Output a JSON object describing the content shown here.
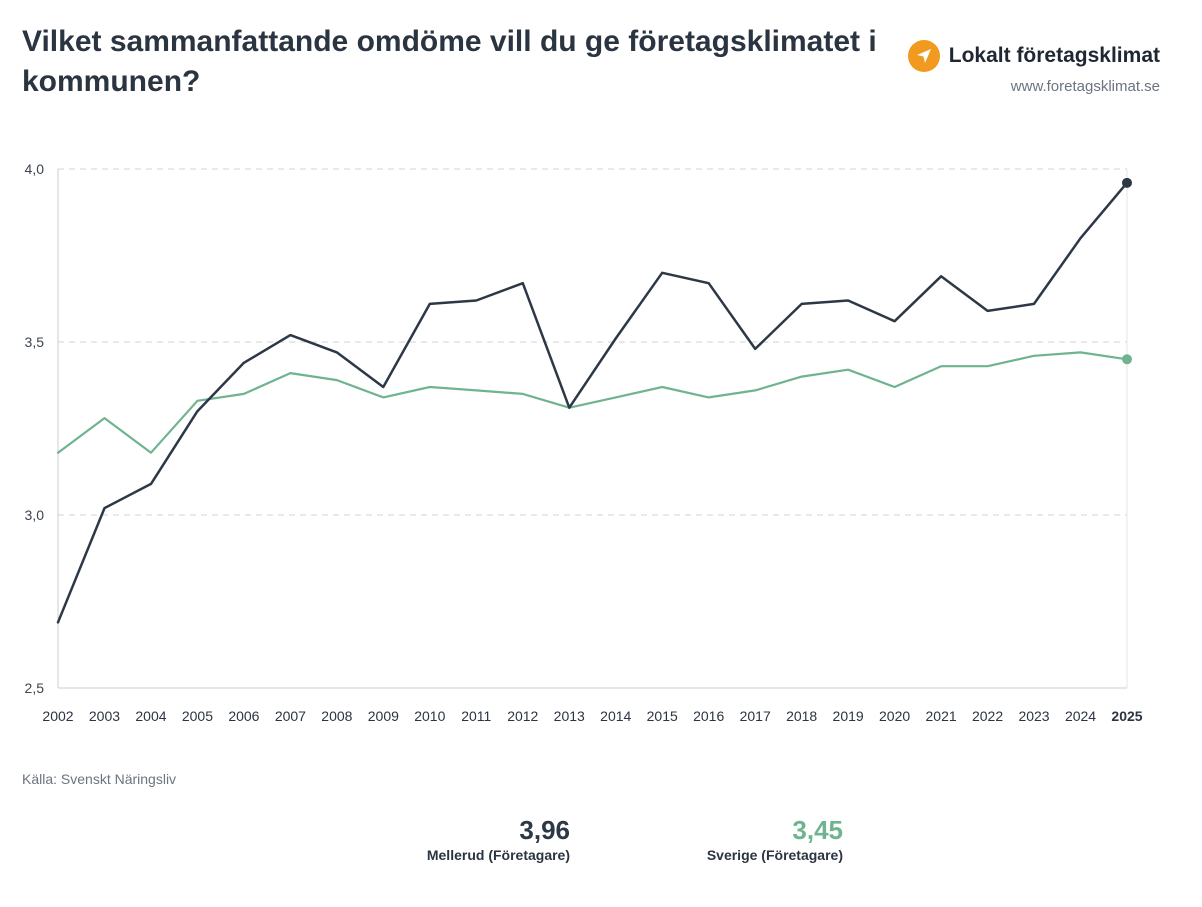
{
  "header": {
    "title": "Vilket sammanfattande omdöme vill du ge företagsklimatet i kommunen?",
    "brand_name": "Lokalt företagsklimat",
    "brand_url": "www.foretagsklimat.se"
  },
  "footer": {
    "source": "Källa: Svenskt Näringsliv"
  },
  "summary": [
    {
      "value": "3,96",
      "label": "Mellerud (Företagare)",
      "color": "#2d3846"
    },
    {
      "value": "3,45",
      "label": "Sverige (Företagare)",
      "color": "#6fb38f"
    }
  ],
  "chart_data": {
    "type": "line",
    "title": "Vilket sammanfattande omdöme vill du ge företagsklimatet i kommunen?",
    "x": [
      "2002",
      "2003",
      "2004",
      "2005",
      "2006",
      "2007",
      "2008",
      "2009",
      "2010",
      "2011",
      "2012",
      "2013",
      "2014",
      "2015",
      "2016",
      "2017",
      "2018",
      "2019",
      "2020",
      "2021",
      "2022",
      "2023",
      "2024",
      "2025"
    ],
    "highlight_x": "2025",
    "ylim": [
      2.5,
      4.0
    ],
    "yticks": [
      2.5,
      3.0,
      3.5,
      4.0
    ],
    "ytick_labels": [
      "2,5",
      "3,0",
      "3,5",
      "4,0"
    ],
    "grid": "horizontal dashed",
    "series": [
      {
        "name": "Mellerud (Företagare)",
        "color": "#2d3846",
        "values": [
          2.69,
          3.02,
          3.09,
          3.3,
          3.44,
          3.52,
          3.47,
          3.37,
          3.61,
          3.62,
          3.67,
          3.31,
          3.51,
          3.7,
          3.67,
          3.48,
          3.61,
          3.62,
          3.56,
          3.69,
          3.59,
          3.61,
          3.8,
          3.96
        ]
      },
      {
        "name": "Sverige (Företagare)",
        "color": "#6fb38f",
        "values": [
          3.18,
          3.28,
          3.18,
          3.33,
          3.35,
          3.41,
          3.39,
          3.34,
          3.37,
          3.36,
          3.35,
          3.31,
          3.34,
          3.37,
          3.34,
          3.36,
          3.4,
          3.42,
          3.37,
          3.43,
          3.43,
          3.46,
          3.47,
          3.45
        ]
      }
    ]
  }
}
